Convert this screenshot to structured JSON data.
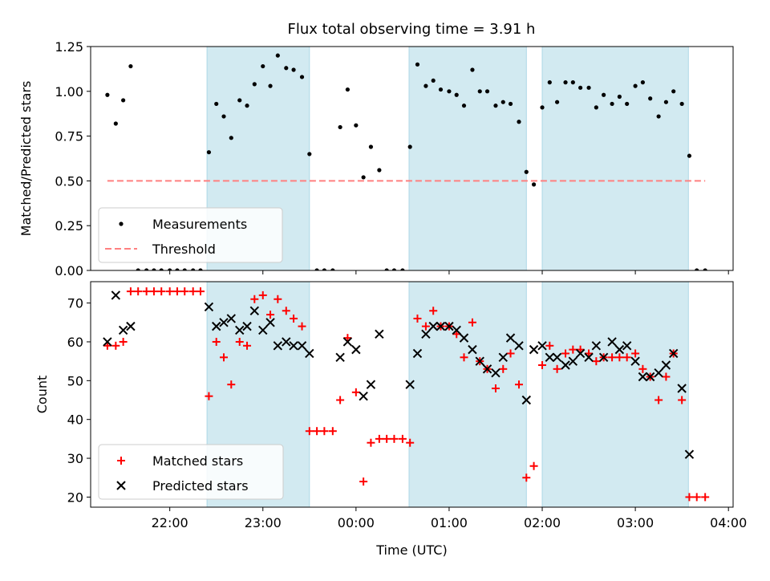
{
  "title": "Flux total observing time = 3.91 h",
  "chart_data": [
    {
      "type": "scatter",
      "ylabel": "Matched/Predicted stars",
      "ylim": [
        0,
        1.25
      ],
      "yticks": [
        0.0,
        0.25,
        0.5,
        0.75,
        1.0,
        1.25
      ],
      "ytick_labels": [
        "0.00",
        "0.25",
        "0.50",
        "0.75",
        "1.00",
        "1.25"
      ],
      "xlim_hours": [
        -2.85,
        4.05
      ],
      "xticks_hours": [
        -2,
        -1,
        0,
        1,
        2,
        3,
        4
      ],
      "shaded_spans_hours": [
        [
          -1.6,
          -0.5
        ],
        [
          0.57,
          1.83
        ],
        [
          2.0,
          3.57
        ]
      ],
      "shade_color": "#add8e6",
      "legend": [
        "Measurements",
        "Threshold"
      ],
      "legend_loc": "lower left",
      "series": [
        {
          "name": "Measurements",
          "color": "#000000",
          "x_hours": [
            -2.67,
            -2.58,
            -2.5,
            -2.42,
            -2.34,
            -2.25,
            -2.17,
            -2.09,
            -2.0,
            -1.92,
            -1.84,
            -1.75,
            -1.67,
            -1.58,
            -1.5,
            -1.42,
            -1.34,
            -1.25,
            -1.17,
            -1.09,
            -1.0,
            -0.92,
            -0.84,
            -0.75,
            -0.67,
            -0.58,
            -0.5,
            -0.42,
            -0.34,
            -0.25,
            -0.17,
            -0.09,
            0.0,
            0.08,
            0.16,
            0.25,
            0.33,
            0.41,
            0.5,
            0.58,
            0.66,
            0.75,
            0.83,
            0.91,
            1.0,
            1.08,
            1.16,
            1.25,
            1.33,
            1.41,
            1.5,
            1.58,
            1.66,
            1.75,
            1.83,
            1.91,
            2.0,
            2.08,
            2.16,
            2.25,
            2.33,
            2.41,
            2.5,
            2.58,
            2.66,
            2.75,
            2.83,
            2.91,
            3.0,
            3.08,
            3.16,
            3.25,
            3.33,
            3.41,
            3.5,
            3.58,
            3.66,
            3.75
          ],
          "y": [
            0.98,
            0.82,
            0.95,
            1.14,
            0.0,
            0.0,
            0.0,
            0.0,
            0.0,
            0.0,
            0.0,
            0.0,
            0.0,
            0.66,
            0.93,
            0.86,
            0.74,
            0.95,
            0.92,
            1.04,
            1.14,
            1.03,
            1.2,
            1.13,
            1.12,
            1.08,
            0.65,
            0.0,
            0.0,
            0.0,
            0.8,
            1.01,
            0.81,
            0.52,
            0.69,
            0.56,
            0.0,
            0.0,
            0.0,
            0.69,
            1.15,
            1.03,
            1.06,
            1.01,
            1.0,
            0.98,
            0.92,
            1.12,
            1.0,
            1.0,
            0.92,
            0.94,
            0.93,
            0.83,
            0.55,
            0.48,
            0.91,
            1.05,
            0.94,
            1.05,
            1.05,
            1.02,
            1.02,
            0.91,
            0.98,
            0.93,
            0.97,
            0.93,
            1.03,
            1.05,
            0.96,
            0.86,
            0.94,
            1.0,
            0.93,
            0.64,
            0.0,
            0.0
          ]
        },
        {
          "name": "Threshold",
          "color": "#ff8080",
          "style": "dashed",
          "x_hours": [
            -2.67,
            3.75
          ],
          "y": [
            0.5,
            0.5
          ]
        }
      ]
    },
    {
      "type": "scatter",
      "ylabel": "Count",
      "xlabel": "Time (UTC)",
      "ylim": [
        17.4,
        75.5
      ],
      "yticks": [
        20,
        30,
        40,
        50,
        60,
        70
      ],
      "ytick_labels": [
        "20",
        "30",
        "40",
        "50",
        "60",
        "70"
      ],
      "xlim_hours": [
        -2.85,
        4.05
      ],
      "xticks_hours": [
        -2,
        -1,
        0,
        1,
        2,
        3,
        4
      ],
      "xtick_labels": [
        "22:00",
        "23:00",
        "00:00",
        "01:00",
        "02:00",
        "03:00",
        "04:00"
      ],
      "shaded_spans_hours": [
        [
          -1.6,
          -0.5
        ],
        [
          0.57,
          1.83
        ],
        [
          2.0,
          3.57
        ]
      ],
      "shade_color": "#add8e6",
      "legend": [
        "Matched stars",
        "Predicted stars"
      ],
      "legend_loc": "lower left",
      "series": [
        {
          "name": "Matched stars",
          "marker": "+",
          "color": "#ff0000",
          "x_hours": [
            -2.67,
            -2.58,
            -2.5,
            -2.42,
            -2.34,
            -2.25,
            -2.17,
            -2.09,
            -2.0,
            -1.92,
            -1.84,
            -1.75,
            -1.67,
            -1.58,
            -1.5,
            -1.42,
            -1.34,
            -1.25,
            -1.17,
            -1.09,
            -1.0,
            -0.92,
            -0.84,
            -0.75,
            -0.67,
            -0.58,
            -0.5,
            -0.42,
            -0.34,
            -0.25,
            -0.17,
            -0.09,
            0.0,
            0.08,
            0.16,
            0.25,
            0.33,
            0.41,
            0.5,
            0.58,
            0.66,
            0.75,
            0.83,
            0.91,
            1.0,
            1.08,
            1.16,
            1.25,
            1.33,
            1.41,
            1.5,
            1.58,
            1.66,
            1.75,
            1.83,
            1.91,
            2.0,
            2.08,
            2.16,
            2.25,
            2.33,
            2.41,
            2.5,
            2.58,
            2.66,
            2.75,
            2.83,
            2.91,
            3.0,
            3.08,
            3.16,
            3.25,
            3.33,
            3.41,
            3.5,
            3.58,
            3.66,
            3.75
          ],
          "y": [
            59,
            59,
            60,
            73,
            73,
            73,
            73,
            73,
            73,
            73,
            73,
            73,
            73,
            46,
            60,
            56,
            49,
            60,
            59,
            71,
            72,
            67,
            71,
            68,
            66,
            64,
            37,
            37,
            37,
            37,
            45,
            61,
            47,
            24,
            34,
            35,
            35,
            35,
            35,
            34,
            66,
            64,
            68,
            64,
            64,
            62,
            56,
            65,
            55,
            53,
            48,
            53,
            57,
            49,
            25,
            28,
            54,
            59,
            53,
            57,
            58,
            58,
            57,
            55,
            56,
            56,
            56,
            56,
            57,
            53,
            51,
            45,
            51,
            57,
            45,
            20,
            20,
            20
          ]
        },
        {
          "name": "Predicted stars",
          "marker": "x",
          "color": "#000000",
          "x_hours": [
            -2.67,
            -2.58,
            -2.5,
            -2.42,
            -1.58,
            -1.5,
            -1.42,
            -1.34,
            -1.25,
            -1.17,
            -1.09,
            -1.0,
            -0.92,
            -0.84,
            -0.75,
            -0.67,
            -0.58,
            -0.5,
            -0.17,
            -0.09,
            0.0,
            0.08,
            0.16,
            0.25,
            0.58,
            0.66,
            0.75,
            0.83,
            0.91,
            1.0,
            1.08,
            1.16,
            1.25,
            1.33,
            1.41,
            1.5,
            1.58,
            1.66,
            1.75,
            1.83,
            1.91,
            2.0,
            2.08,
            2.16,
            2.25,
            2.33,
            2.41,
            2.5,
            2.58,
            2.66,
            2.75,
            2.83,
            2.91,
            3.0,
            3.08,
            3.16,
            3.25,
            3.33,
            3.41,
            3.5,
            3.58
          ],
          "y": [
            60,
            72,
            63,
            64,
            69,
            64,
            65,
            66,
            63,
            64,
            68,
            63,
            65,
            59,
            60,
            59,
            59,
            57,
            56,
            60,
            58,
            46,
            49,
            62,
            49,
            57,
            62,
            64,
            64,
            64,
            63,
            61,
            58,
            55,
            53,
            52,
            56,
            61,
            59,
            45,
            58,
            59,
            56,
            56,
            54,
            55,
            57,
            56,
            59,
            56,
            60,
            58,
            59,
            55,
            51,
            51,
            52,
            54,
            57,
            48,
            31
          ]
        }
      ]
    }
  ]
}
